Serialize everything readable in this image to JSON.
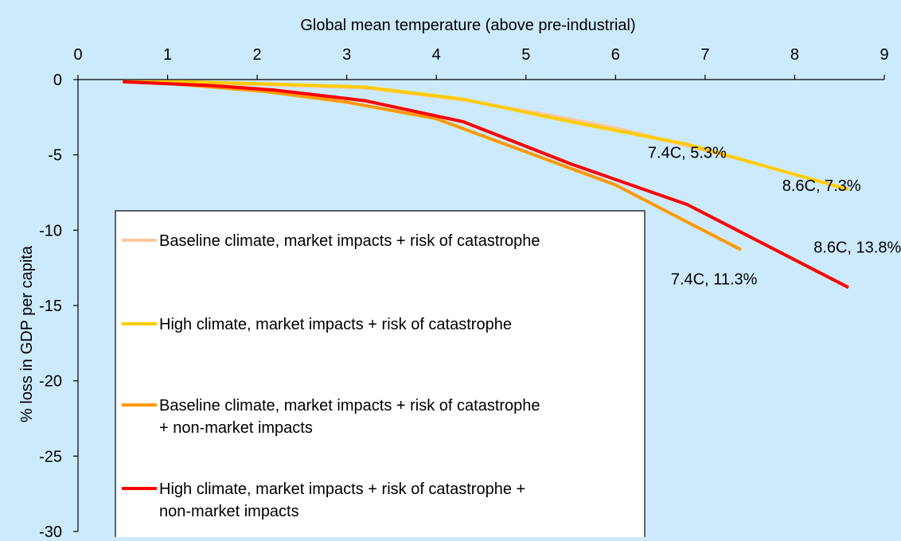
{
  "chart_data": {
    "type": "line",
    "xlabel": "Global mean temperature (above pre-industrial)",
    "ylabel": "% loss in GDP per capita",
    "xlim": [
      0,
      9
    ],
    "ylim": [
      -30,
      0
    ],
    "x_ticks": [
      "0",
      "1",
      "2",
      "3",
      "4",
      "5",
      "6",
      "7",
      "8",
      "9"
    ],
    "y_ticks": [
      "0",
      "-5",
      "-10",
      "-15",
      "-20",
      "-25",
      "-30"
    ],
    "x_axis_position": "top",
    "grid": false,
    "legend_position": "bottom-left",
    "series": [
      {
        "name": "Baseline climate, market impacts + risk of catastrophe",
        "color": "#f9c9a1",
        "points": [
          [
            0.5,
            -0.15
          ],
          [
            1.1,
            -0.2
          ],
          [
            2.1,
            -0.35
          ],
          [
            3.2,
            -0.55
          ],
          [
            4.3,
            -1.35
          ],
          [
            5.3,
            -2.4
          ],
          [
            6.0,
            -3.2
          ],
          [
            7.4,
            -5.3
          ]
        ]
      },
      {
        "name": "High climate, market impacts + risk of catastrophe",
        "color": "#ffcc00",
        "points": [
          [
            0.5,
            -0.15
          ],
          [
            1.2,
            -0.15
          ],
          [
            2.2,
            -0.3
          ],
          [
            3.2,
            -0.5
          ],
          [
            4.3,
            -1.3
          ],
          [
            5.5,
            -2.8
          ],
          [
            6.8,
            -4.3
          ],
          [
            8.6,
            -7.3
          ]
        ]
      },
      {
        "name": "Baseline climate, market impacts + risk of catastrophe + non-market impacts",
        "color": "#ff9900",
        "points": [
          [
            0.5,
            -0.15
          ],
          [
            1.1,
            -0.3
          ],
          [
            2.1,
            -0.8
          ],
          [
            3.0,
            -1.5
          ],
          [
            4.0,
            -2.6
          ],
          [
            5.0,
            -4.8
          ],
          [
            6.0,
            -7.0
          ],
          [
            7.4,
            -11.3
          ]
        ]
      },
      {
        "name": "High climate, market impacts + risk of catastrophe + non-market impacts",
        "color": "#ff0000",
        "points": [
          [
            0.5,
            -0.15
          ],
          [
            1.5,
            -0.4
          ],
          [
            2.2,
            -0.7
          ],
          [
            3.2,
            -1.4
          ],
          [
            4.3,
            -2.8
          ],
          [
            5.5,
            -5.6
          ],
          [
            6.8,
            -8.3
          ],
          [
            8.6,
            -13.8
          ]
        ]
      }
    ],
    "annotations": [
      {
        "text": "7.4C, 5.3%",
        "x": 6.8,
        "y": -5.2,
        "anchor": "middle"
      },
      {
        "text": "8.6C, 7.3%",
        "x": 8.3,
        "y": -7.4,
        "anchor": "middle"
      },
      {
        "text": "8.6C, 13.8%",
        "x": 8.7,
        "y": -11.5,
        "anchor": "middle"
      },
      {
        "text": "7.4C, 11.3%",
        "x": 7.1,
        "y": -13.6,
        "anchor": "middle"
      }
    ]
  }
}
